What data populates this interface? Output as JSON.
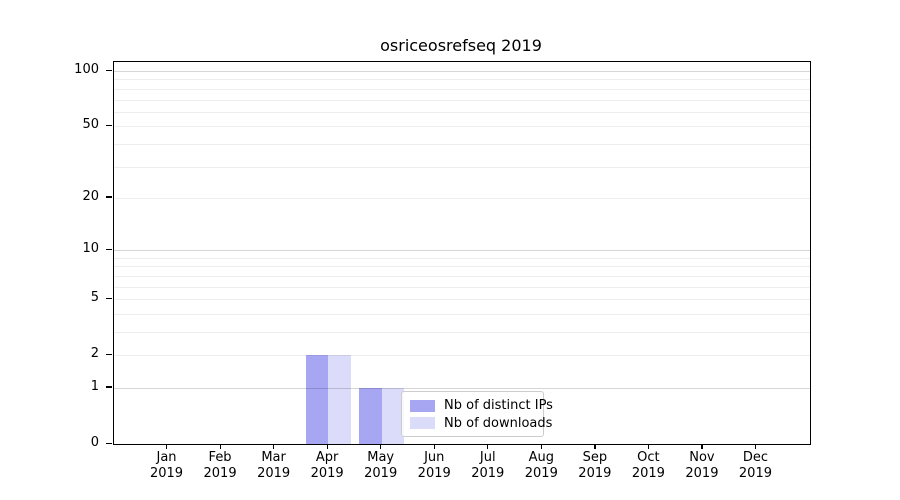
{
  "chart_data": {
    "type": "bar",
    "title": "osriceosrefseq 2019",
    "xlabel": "",
    "ylabel": "",
    "year_label": "2019",
    "categories": [
      "Jan",
      "Feb",
      "Mar",
      "Apr",
      "May",
      "Jun",
      "Jul",
      "Aug",
      "Sep",
      "Oct",
      "Nov",
      "Dec"
    ],
    "series": [
      {
        "name": "Nb of distinct IPs",
        "color": "#a6a6f2",
        "values": [
          0,
          0,
          0,
          2,
          1,
          0,
          0,
          0,
          0,
          0,
          0,
          0
        ]
      },
      {
        "name": "Nb of downloads",
        "color": "#dbdbfa",
        "values": [
          0,
          0,
          0,
          2,
          1,
          0,
          0,
          0,
          0,
          0,
          0,
          0
        ]
      }
    ],
    "yticks": [
      0,
      1,
      2,
      5,
      10,
      20,
      50,
      100
    ],
    "major_gridlines": [
      1,
      10,
      100
    ],
    "minor_gridlines": [
      2,
      3,
      4,
      5,
      6,
      7,
      8,
      9,
      20,
      30,
      40,
      50,
      60,
      70,
      80,
      90
    ],
    "ylim": [
      0,
      112
    ],
    "yscale": "log1p",
    "grid": true,
    "grid_above_bars": true,
    "legend_position": "lower center-right inside plot"
  },
  "colors": {
    "background": "#ffffff",
    "spine": "#000000",
    "text": "#000000",
    "grid_minor": "rgba(0,0,0,0.07)",
    "grid_major": "rgba(0,0,0,0.16)",
    "legend_border": "#cccccc",
    "legend_background": "rgba(255,255,255,0.8)"
  }
}
